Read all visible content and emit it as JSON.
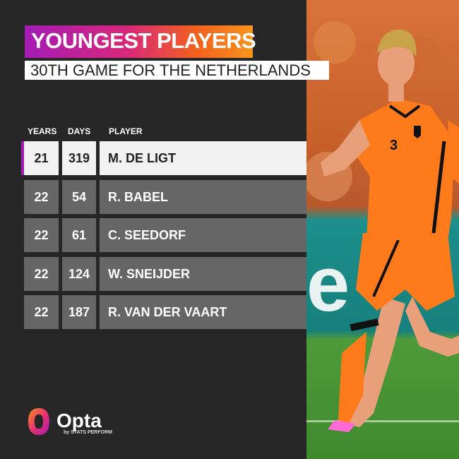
{
  "title": "YOUNGEST PLAYERS",
  "subtitle": "30TH GAME FOR THE NETHERLANDS",
  "headers": {
    "years": "YEARS",
    "days": "DAYS",
    "player": "PLAYER"
  },
  "rows": [
    {
      "years": "21",
      "days": "319",
      "player": "M. DE LIGT",
      "highlighted": true
    },
    {
      "years": "22",
      "days": "54",
      "player": "R. BABEL"
    },
    {
      "years": "22",
      "days": "61",
      "player": "C. SEEDORF"
    },
    {
      "years": "22",
      "days": "124",
      "player": "W. SNEIJDER"
    },
    {
      "years": "22",
      "days": "187",
      "player": "R. VAN DER VAART"
    }
  ],
  "brand": {
    "name": "Opta",
    "tagline": "by STATS PERFORM"
  },
  "colors": {
    "background": "#262626",
    "row": "#666666",
    "highlight_row": "#f2f2f2",
    "accent": "#a41bb5",
    "orange": "#f7941d"
  },
  "photo": {
    "icon": "player-photo",
    "shirt_number": "3"
  }
}
